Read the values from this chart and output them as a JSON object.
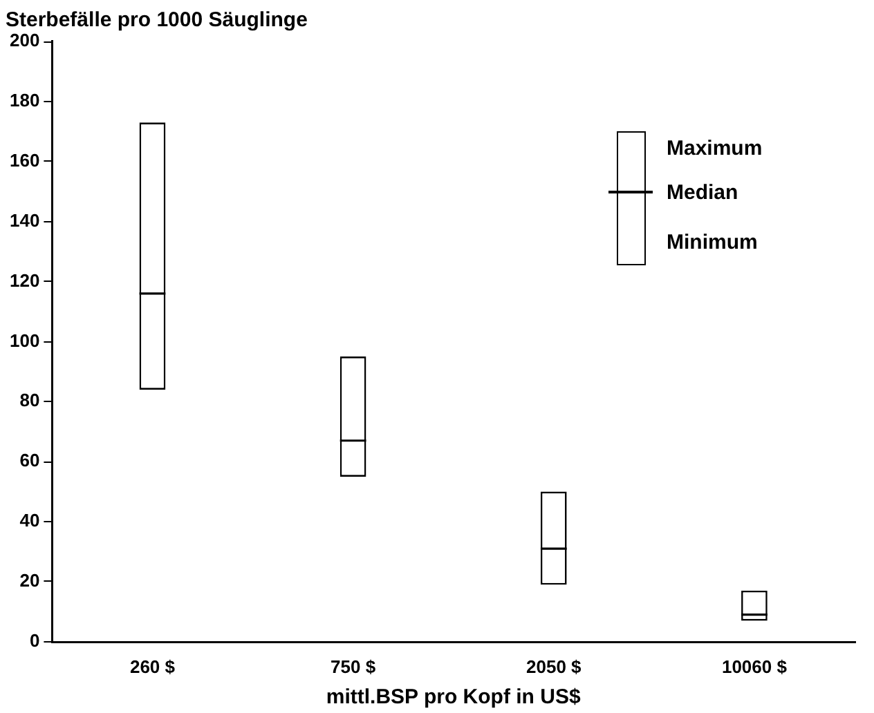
{
  "chart_data": {
    "type": "box",
    "title": "Sterbefälle pro 1000 Säuglinge",
    "xlabel": "mittl.BSP pro Kopf in US$",
    "categories": [
      "260 $",
      "750 $",
      "2050 $",
      "10060 $"
    ],
    "boxes": [
      {
        "low": 84,
        "q1": 84,
        "median": 116,
        "q3": 173,
        "high": 173
      },
      {
        "low": 55,
        "q1": 55,
        "median": 67,
        "q3": 95,
        "high": 95
      },
      {
        "low": 19,
        "q1": 19,
        "median": 31,
        "q3": 50,
        "high": 50
      },
      {
        "low": 7,
        "q1": 7,
        "median": 9,
        "q3": 17,
        "high": 17
      }
    ],
    "color": "#000000",
    "annotations": [
      "Maximum",
      "Median",
      "Minimum"
    ],
    "ylim": [
      0,
      200
    ],
    "yticks": [
      0,
      20,
      40,
      60,
      80,
      100,
      120,
      140,
      160,
      180,
      200
    ],
    "grid": false
  }
}
